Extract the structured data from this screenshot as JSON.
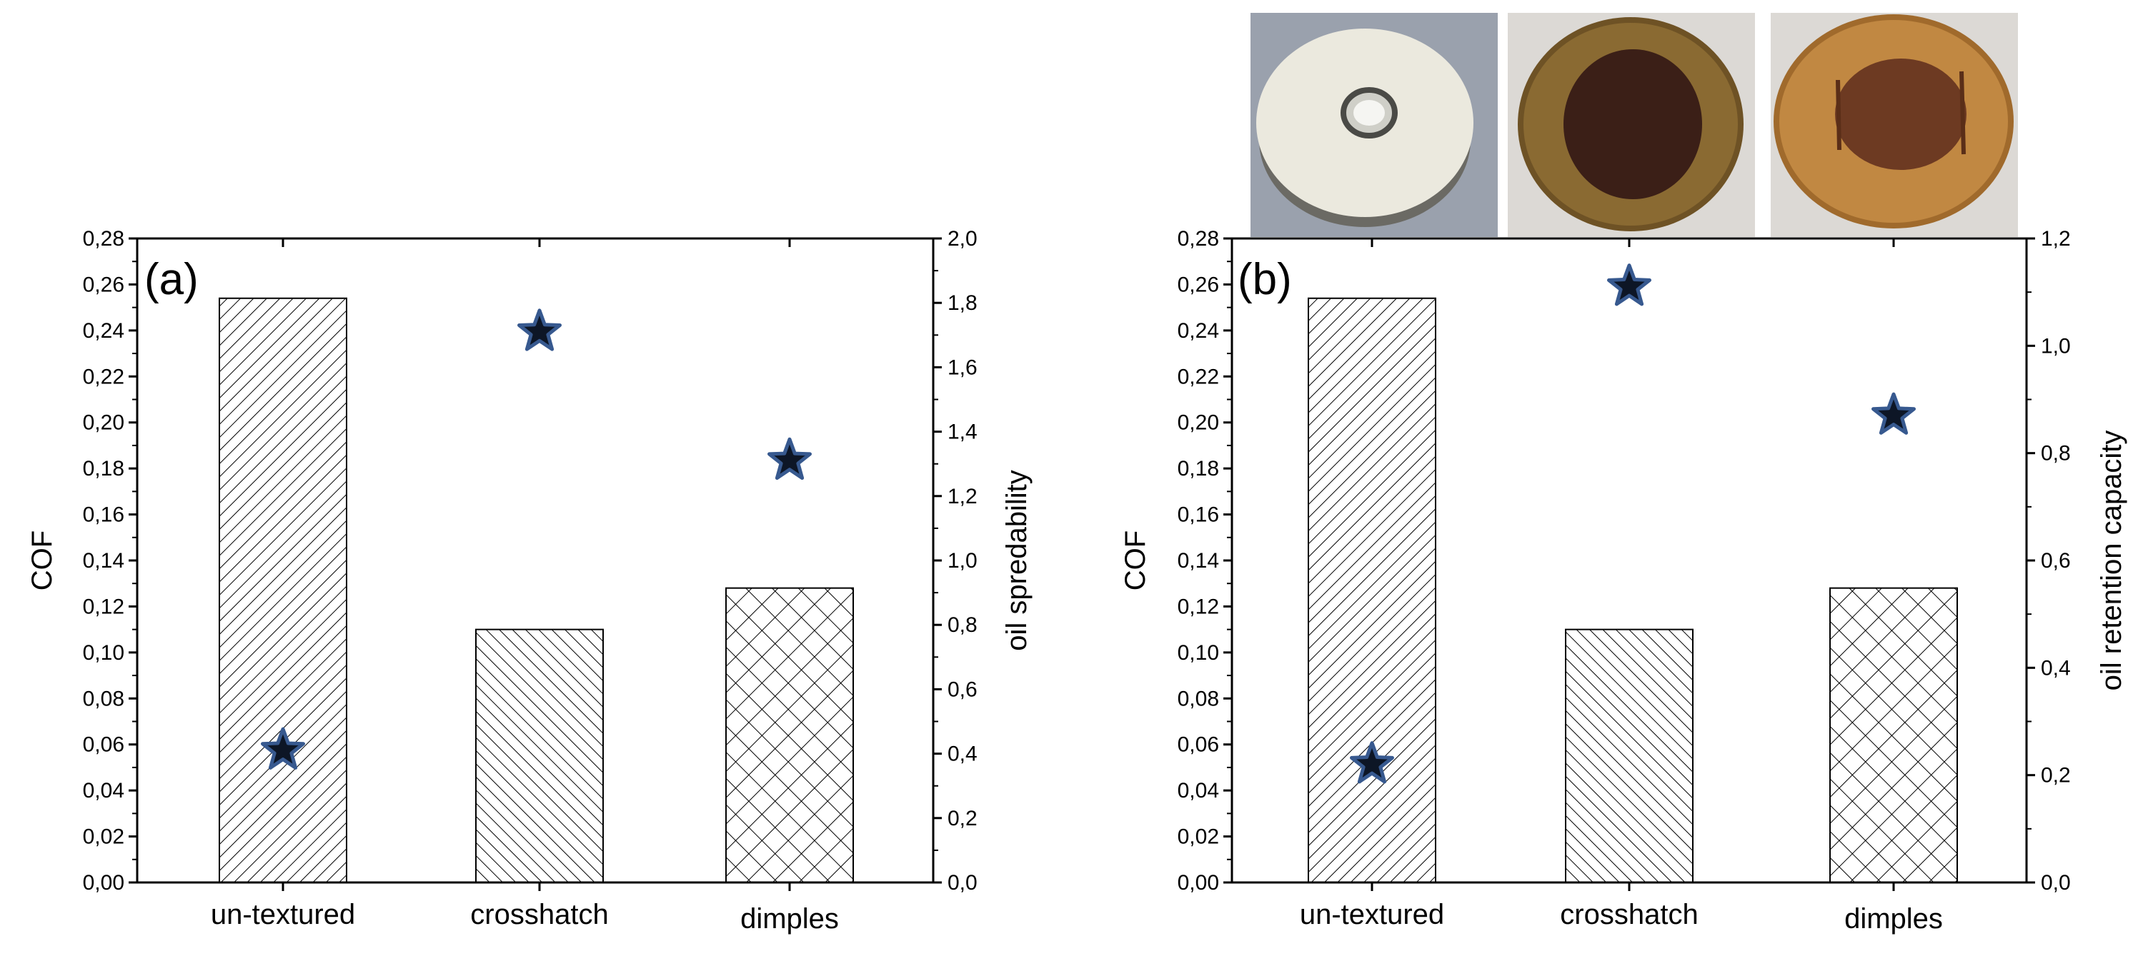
{
  "chart_data": [
    {
      "type": "bar",
      "panel_label": "(a)",
      "categories": [
        "un-textured",
        "crosshatch",
        "dimples"
      ],
      "series": [
        {
          "axis": "left",
          "values": [
            0.254,
            0.11,
            0.128
          ],
          "hatch": [
            "diag-up",
            "diag-down",
            "cross"
          ]
        },
        {
          "axis": "right",
          "type": "scatter",
          "marker": "star",
          "values": [
            0.41,
            1.71,
            1.31
          ]
        }
      ],
      "ylabel": "COF",
      "ylim": [
        0,
        0.28
      ],
      "yticks": [
        "0,00",
        "0,02",
        "0,04",
        "0,06",
        "0,08",
        "0,10",
        "0,12",
        "0,14",
        "0,16",
        "0,18",
        "0,20",
        "0,22",
        "0,24",
        "0,26",
        "0,28"
      ],
      "y2label": "oil spredability",
      "y2lim": [
        0,
        2.0
      ],
      "y2ticks": [
        "0,0",
        "0,2",
        "0,4",
        "0,6",
        "0,8",
        "1,0",
        "1,2",
        "1,4",
        "1,6",
        "1,8",
        "2,0"
      ],
      "grid": false
    },
    {
      "type": "bar",
      "panel_label": "(b)",
      "categories": [
        "un-textured",
        "crosshatch",
        "dimples"
      ],
      "series": [
        {
          "axis": "left",
          "values": [
            0.254,
            0.11,
            0.128
          ],
          "hatch": [
            "diag-up",
            "diag-down",
            "cross"
          ]
        },
        {
          "axis": "right",
          "type": "scatter",
          "marker": "star",
          "values": [
            0.22,
            1.11,
            0.87
          ]
        }
      ],
      "ylabel": "COF",
      "ylim": [
        0,
        0.28
      ],
      "yticks": [
        "0,00",
        "0,02",
        "0,04",
        "0,06",
        "0,08",
        "0,10",
        "0,12",
        "0,14",
        "0,16",
        "0,18",
        "0,20",
        "0,22",
        "0,24",
        "0,26",
        "0,28"
      ],
      "y2label": "oil retention capacity",
      "y2lim": [
        0,
        1.2
      ],
      "y2ticks": [
        "0,0",
        "0,2",
        "0,4",
        "0,6",
        "0,8",
        "1,0",
        "1,2"
      ],
      "grid": false
    }
  ],
  "photos": [
    {
      "name": "un-textured",
      "icon": "disc-with-oil-droplet",
      "bg": "#9aa1ad",
      "disc": "#e9e7dc",
      "spot": "#d6d6d0"
    },
    {
      "name": "crosshatch",
      "icon": "disc-with-spread-oil",
      "bg": "#d9d6d2",
      "disc": "#7a5a2a",
      "spot": "#3a1f16"
    },
    {
      "name": "dimples",
      "icon": "disc-with-spread-oil",
      "bg": "#d9d6d2",
      "disc": "#b07a35",
      "spot": "#6d3a22"
    }
  ],
  "colors": {
    "star_fill": "#0d1626",
    "star_stroke": "#37598f",
    "axis": "#000000"
  }
}
